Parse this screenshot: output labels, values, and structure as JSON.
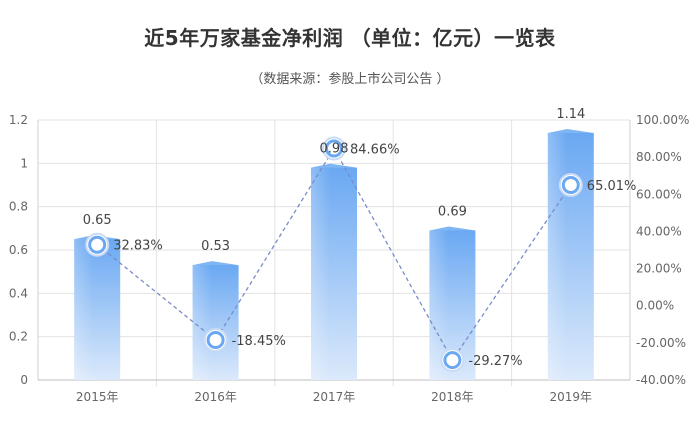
{
  "header": {
    "title": "近5年万家基金净利润  （单位：亿元）一览表",
    "subtitle": "（数据来源：参股上市公司公告 ）"
  },
  "colors": {
    "bar_top": "#6aa8f2",
    "bar_bottom": "#dbe9fb",
    "line": "#7a8cc8",
    "marker_fill": "#6aa8f2",
    "axis": "#666666",
    "grid": "#e3e3e3"
  },
  "chart_data": {
    "type": "bar",
    "categories": [
      "2015年",
      "2016年",
      "2017年",
      "2018年",
      "2019年"
    ],
    "series": [
      {
        "type": "bar",
        "axis": "left",
        "values": [
          0.65,
          0.53,
          0.98,
          0.69,
          1.14
        ],
        "labels": [
          "0.65",
          "0.53",
          "0.98",
          "0.69",
          "1.14"
        ]
      },
      {
        "type": "line",
        "axis": "right",
        "style": "dashed",
        "values": [
          32.83,
          -18.45,
          84.66,
          -29.27,
          65.01
        ],
        "labels": [
          "32.83%",
          "-18.45%",
          "84.66%",
          "-29.27%",
          "65.01%"
        ]
      }
    ],
    "y_left": {
      "ylim": [
        0,
        1.2
      ],
      "ticks": [
        0,
        0.2,
        0.4,
        0.6,
        0.8,
        1,
        1.2
      ],
      "tick_labels": [
        "0",
        "0.2",
        "0.4",
        "0.6",
        "0.8",
        "1",
        "1.2"
      ]
    },
    "y_right": {
      "ylim": [
        -40,
        100
      ],
      "ticks": [
        -40,
        -20,
        0,
        20,
        40,
        60,
        80,
        100
      ],
      "tick_labels": [
        "-40.00%",
        "-20.00%",
        "0.00%",
        "20.00%",
        "40.00%",
        "60.00%",
        "80.00%",
        "100.00%"
      ]
    },
    "grid": true
  }
}
